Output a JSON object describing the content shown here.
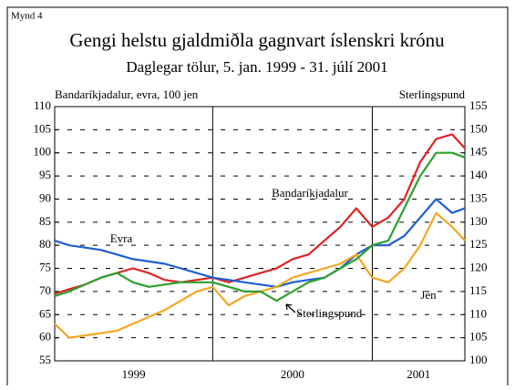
{
  "chart_data": {
    "type": "line",
    "label": "Mynd 4",
    "title": "Gengi helstu gjaldmiðla gagnvart íslenskri krónu",
    "subtitle": "Daglegar tölur, 5. jan. 1999 - 31. júlí 2001",
    "ylabel": "Bandaríkjadalur, evra, 100 jen",
    "y2label": "Sterlingspund",
    "categories": [
      "1999",
      "2000",
      "2001"
    ],
    "x": [
      1999.01,
      1999.1,
      1999.2,
      1999.3,
      1999.4,
      1999.5,
      1999.6,
      1999.7,
      1999.8,
      1999.9,
      2000.0,
      2000.1,
      2000.2,
      2000.3,
      2000.4,
      2000.5,
      2000.6,
      2000.7,
      2000.8,
      2000.9,
      2001.0,
      2001.1,
      2001.2,
      2001.3,
      2001.4,
      2001.5,
      2001.58
    ],
    "xlim": [
      1999.01,
      2001.58
    ],
    "xticks": [
      2000,
      2001
    ],
    "ylim": [
      55,
      110
    ],
    "yticks": [
      55,
      60,
      65,
      70,
      75,
      80,
      85,
      90,
      95,
      100,
      105,
      110
    ],
    "y2lim": [
      100,
      155
    ],
    "y2ticks": [
      100,
      105,
      110,
      115,
      120,
      125,
      130,
      135,
      140,
      145,
      150,
      155
    ],
    "grid": true,
    "series": [
      {
        "name": "Bandaríkjadalur",
        "color": "#e02222",
        "values": [
          69.5,
          70.5,
          71.5,
          73,
          74,
          75,
          74,
          72.5,
          72,
          72.5,
          73,
          72,
          73,
          74,
          75,
          77,
          78,
          81,
          84,
          88,
          84,
          86,
          90,
          98,
          103,
          104,
          101
        ]
      },
      {
        "name": "Evra",
        "color": "#1f5fd0",
        "values": [
          81,
          80,
          79.5,
          79,
          78,
          77,
          76.5,
          76,
          75,
          74,
          73,
          72.5,
          72,
          71.5,
          71,
          72,
          72.5,
          73,
          75,
          78,
          80,
          80,
          82,
          86,
          90,
          87,
          88
        ]
      },
      {
        "name": "Jen",
        "color": "#f5a623",
        "values": [
          63,
          60,
          60.5,
          61,
          61.5,
          63,
          64.5,
          66,
          68,
          70,
          71,
          67,
          69,
          70,
          71,
          73,
          74,
          75,
          76,
          78,
          73,
          72,
          75,
          80,
          87,
          84,
          81
        ]
      },
      {
        "name": "Sterlingspund",
        "color": "#2ca02c",
        "axis": "y2",
        "values": [
          114,
          115,
          116.5,
          118,
          119,
          117,
          116,
          116.5,
          117,
          117,
          117,
          116,
          115,
          115,
          113,
          115,
          117,
          118,
          120,
          122,
          125,
          126,
          133,
          140,
          145,
          145,
          144
        ]
      }
    ]
  }
}
